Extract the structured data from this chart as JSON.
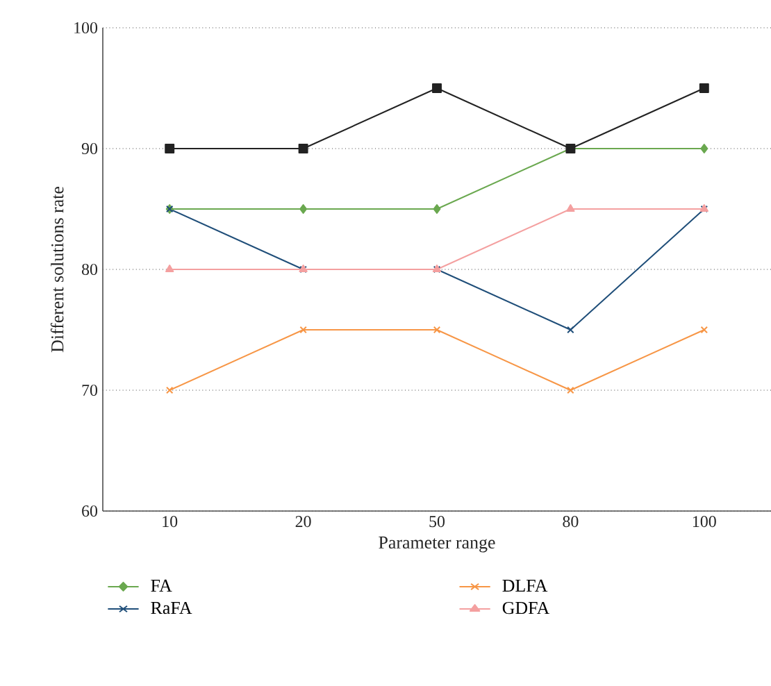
{
  "chart_data": {
    "type": "line",
    "xlabel": "Parameter range",
    "ylabel": "Different solutions rate",
    "categories": [
      "10",
      "20",
      "50",
      "80",
      "100"
    ],
    "series": [
      {
        "name": "FA",
        "color": "#6aa84f",
        "marker": "diamond",
        "values": [
          85,
          85,
          85,
          90,
          90
        ]
      },
      {
        "name": "RaFA",
        "color": "#1f4e79",
        "marker": "cross",
        "values": [
          85,
          80,
          80,
          75,
          85
        ]
      },
      {
        "name": "DLFA",
        "color": "#f79646",
        "marker": "cross",
        "values": [
          70,
          75,
          75,
          70,
          75
        ]
      },
      {
        "name": "GDFA",
        "color": "#f4a0a0",
        "marker": "triangle",
        "values": [
          80,
          80,
          80,
          85,
          85
        ]
      },
      {
        "color": "#222222",
        "marker": "square",
        "values": [
          90,
          90,
          95,
          90,
          95
        ]
      }
    ],
    "ylim": [
      60,
      100
    ],
    "yticks": [
      60,
      70,
      80,
      90,
      100
    ],
    "grid": "y",
    "legend": "bottom"
  }
}
